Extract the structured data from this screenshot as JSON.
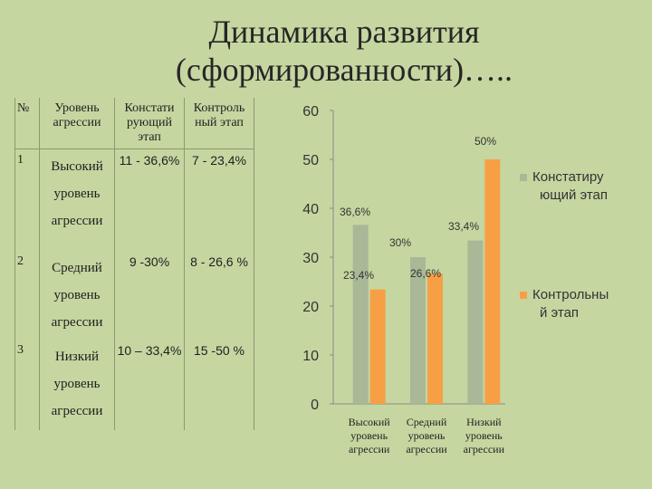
{
  "title_line1": "Динамика развития",
  "title_line2": "(сформированности)…..",
  "table": {
    "headers": [
      "№",
      "Уровень агрессии",
      "Констати рующий этап",
      "Контроль ный этап"
    ],
    "rows": [
      {
        "num": "1",
        "level": "Высокий уровень агрессии",
        "stage1": "11 - 36,6%",
        "stage2": "7 - 23,4%"
      },
      {
        "num": "2",
        "level": "Средний уровень агрессии",
        "stage1": "9 -30%",
        "stage2": "8 - 26,6 %"
      },
      {
        "num": "3",
        "level": "Низкий уровень агрессии",
        "stage1": "10 – 33,4%",
        "stage2": "15 -50 %"
      }
    ]
  },
  "chart_data": {
    "type": "bar",
    "categories": [
      "Высокий уровень агрессии",
      "Средний уровень агрессии",
      "Низкий уровень агрессии"
    ],
    "series": [
      {
        "name": "Констатирующий этап",
        "values": [
          36.6,
          30,
          33.4
        ],
        "labels": [
          "36,6%",
          "30%",
          "33,4%"
        ],
        "color": "#a9b897"
      },
      {
        "name": "Контрольный этап",
        "values": [
          23.4,
          26.6,
          50
        ],
        "labels": [
          "23,4%",
          "26,6%",
          "50%"
        ],
        "color": "#f79f45"
      }
    ],
    "ylim": [
      0,
      60
    ],
    "yticks": [
      0,
      10,
      20,
      30,
      40,
      50,
      60
    ],
    "grid": false,
    "legend": "right"
  }
}
